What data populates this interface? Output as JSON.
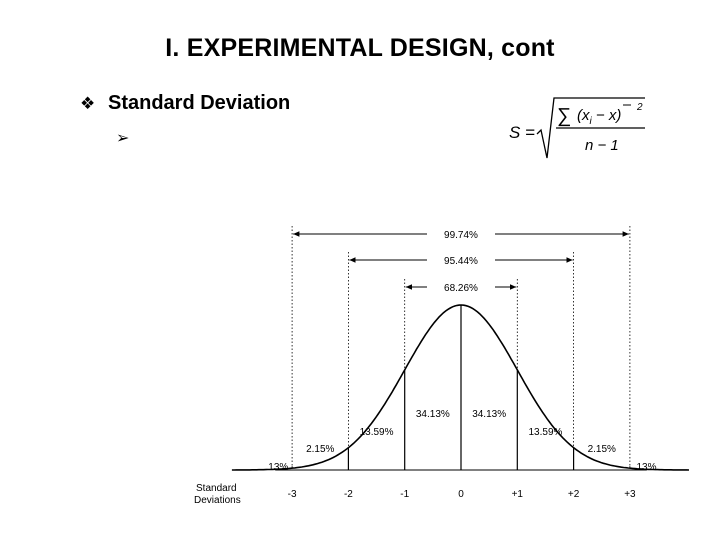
{
  "slide": {
    "title": "I.  EXPERIMENTAL DESIGN, cont",
    "bullet_text": "Standard Deviation",
    "bullet_icon": "diamond-bullet",
    "sub_bullet_icon": "arrow-bullet"
  },
  "formula": {
    "lhs": "S =",
    "sum": "∑",
    "numerator": "(x",
    "subscript": "i",
    "minus_mean": " − x)",
    "exponent": "2",
    "denominator": "n − 1"
  },
  "chart_data": {
    "type": "area",
    "xlabel": "Standard Deviations",
    "x_ticks": [
      "-3",
      "-2",
      "-1",
      "0",
      "+1",
      "+2",
      "+3"
    ],
    "ranges": [
      {
        "label": "99.74%",
        "from": -3,
        "to": 3
      },
      {
        "label": "95.44%",
        "from": -2,
        "to": 2
      },
      {
        "label": "68.26%",
        "from": -1,
        "to": 1
      }
    ],
    "segments": [
      {
        "label": ".13%",
        "from": -4,
        "to": -3
      },
      {
        "label": "2.15%",
        "from": -3,
        "to": -2
      },
      {
        "label": "13.59%",
        "from": -2,
        "to": -1
      },
      {
        "label": "34.13%",
        "from": -1,
        "to": 0
      },
      {
        "label": "34.13%",
        "from": 0,
        "to": 1
      },
      {
        "label": "13.59%",
        "from": 1,
        "to": 2
      },
      {
        "label": "2.15%",
        "from": 2,
        "to": 3
      },
      {
        "label": ".13%",
        "from": 3,
        "to": 4
      }
    ]
  }
}
